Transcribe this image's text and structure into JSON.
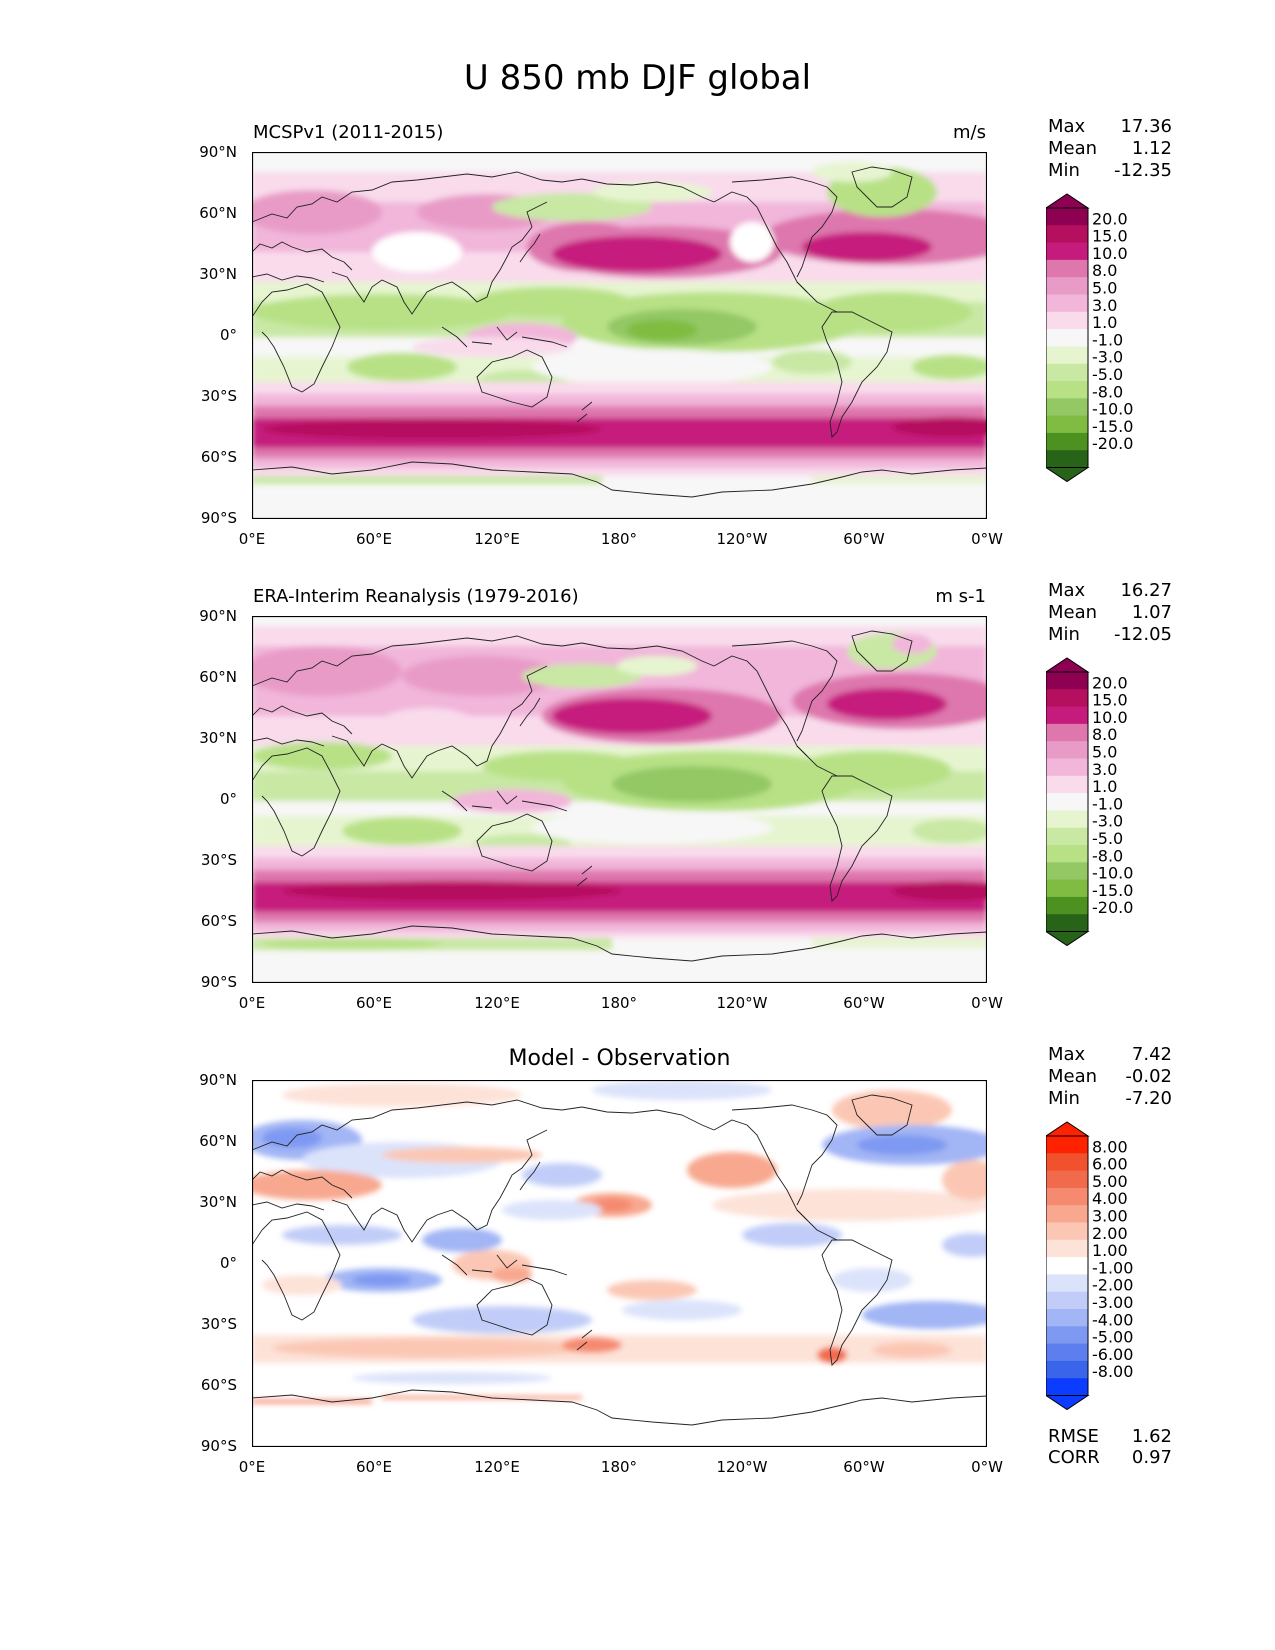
{
  "figure": {
    "title": "U 850 mb DJF global"
  },
  "axes": {
    "y_ticks": [
      "90°N",
      "60°N",
      "30°N",
      "0°",
      "30°S",
      "60°S",
      "90°S"
    ],
    "x_ticks": [
      "0°E",
      "60°E",
      "120°E",
      "180°",
      "120°W",
      "60°W",
      "0°W"
    ]
  },
  "panels": [
    {
      "title_left": "MCSPv1 (2011-2015)",
      "title_right": "m/s",
      "stats": {
        "max_label": "Max",
        "max": "17.36",
        "mean_label": "Mean",
        "mean": "1.12",
        "min_label": "Min",
        "min": "-12.35"
      },
      "colorbar": {
        "levels": [
          "20.0",
          "15.0",
          "10.0",
          "8.0",
          "5.0",
          "3.0",
          "1.0",
          "-1.0",
          "-3.0",
          "-5.0",
          "-8.0",
          "-10.0",
          "-15.0",
          "-20.0"
        ],
        "colors": [
          "#8e0152",
          "#b5105f",
          "#c51b7d",
          "#de77ae",
          "#e89bc7",
          "#f1b6da",
          "#f9dbec",
          "#f7f7f7",
          "#e6f5d0",
          "#c8e8a4",
          "#b8e186",
          "#93c865",
          "#7fbc41",
          "#4d9221",
          "#276419"
        ]
      }
    },
    {
      "title_left": "ERA-Interim Reanalysis (1979-2016)",
      "title_right": "m s-1",
      "stats": {
        "max_label": "Max",
        "max": "16.27",
        "mean_label": "Mean",
        "mean": "1.07",
        "min_label": "Min",
        "min": "-12.05"
      },
      "colorbar": {
        "levels": [
          "20.0",
          "15.0",
          "10.0",
          "8.0",
          "5.0",
          "3.0",
          "1.0",
          "-1.0",
          "-3.0",
          "-5.0",
          "-8.0",
          "-10.0",
          "-15.0",
          "-20.0"
        ],
        "colors": [
          "#8e0152",
          "#b5105f",
          "#c51b7d",
          "#de77ae",
          "#e89bc7",
          "#f1b6da",
          "#f9dbec",
          "#f7f7f7",
          "#e6f5d0",
          "#c8e8a4",
          "#b8e186",
          "#93c865",
          "#7fbc41",
          "#4d9221",
          "#276419"
        ]
      }
    },
    {
      "title_center": "Model - Observation",
      "stats": {
        "max_label": "Max",
        "max": "7.42",
        "mean_label": "Mean",
        "mean": "-0.02",
        "min_label": "Min",
        "min": "-7.20"
      },
      "extra_stats": {
        "rmse_label": "RMSE",
        "rmse": "1.62",
        "corr_label": "CORR",
        "corr": "0.97"
      },
      "colorbar": {
        "levels": [
          "8.00",
          "6.00",
          "5.00",
          "4.00",
          "3.00",
          "2.00",
          "1.00",
          "-1.00",
          "-2.00",
          "-3.00",
          "-4.00",
          "-5.00",
          "-6.00",
          "-8.00"
        ],
        "colors": [
          "#ff2200",
          "#f0522d",
          "#f26a4c",
          "#f58a70",
          "#f8a88f",
          "#fbc7b4",
          "#fde2d8",
          "#ffffff",
          "#dbe3fb",
          "#c1cdf8",
          "#a2b5f5",
          "#7e99f1",
          "#5c7eee",
          "#3a64ea",
          "#0c3cff"
        ]
      }
    }
  ]
}
